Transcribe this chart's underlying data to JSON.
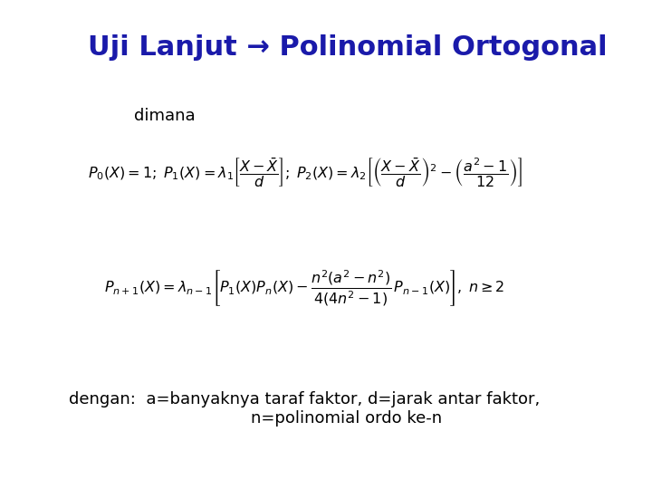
{
  "title": "Uji Lanjut → Polinomial Ortogonal",
  "title_color": "#1a1aaa",
  "title_fontsize": 22,
  "background_color": "#ffffff",
  "dimana_text": "dimana",
  "dimana_fontsize": 13,
  "formula1": "$P_0(X) = 1;\\; P_1(X) = \\lambda_1 \\left[\\dfrac{X - \\bar{X}}{d}\\right];\\; P_2(X) = \\lambda_2 \\left[\\left(\\dfrac{X - \\bar{X}}{d}\\right)^2 - \\left(\\dfrac{a^2 - 1}{12}\\right)\\right]$",
  "formula2": "$P_{n+1}(X) = \\lambda_{n-1}\\left[P_1(X)P_n(X) - \\dfrac{n^2(a^2 - n^2)}{4(4n^2 - 1)}\\,P_{n-1}(X)\\right],\\; n \\geq 2$",
  "formula_fontsize": 13,
  "dengan_text": "dengan:  a=banyaknya taraf faktor, d=jarak antar faktor,\n            n=polinomial ordo ke-n",
  "dengan_fontsize": 13,
  "text_color": "#000000"
}
